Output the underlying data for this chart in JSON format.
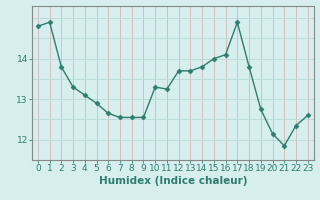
{
  "x": [
    0,
    1,
    2,
    3,
    4,
    5,
    6,
    7,
    8,
    9,
    10,
    11,
    12,
    13,
    14,
    15,
    16,
    17,
    18,
    19,
    20,
    21,
    22,
    23
  ],
  "y": [
    14.8,
    14.9,
    13.8,
    13.3,
    13.1,
    12.9,
    12.65,
    12.55,
    12.55,
    12.55,
    13.3,
    13.25,
    13.7,
    13.7,
    13.8,
    14.0,
    14.1,
    14.9,
    13.8,
    12.75,
    12.15,
    11.85,
    12.35,
    12.6
  ],
  "line_color": "#2e7d6e",
  "marker": "D",
  "marker_size": 2.5,
  "bg_color": "#d6eeee",
  "grid_color": "#b8d8d8",
  "grid_color_red": "#d4b8b8",
  "axis_color": "#888888",
  "xlabel": "Humidex (Indice chaleur)",
  "xlim": [
    -0.5,
    23.5
  ],
  "ylim": [
    11.5,
    15.3
  ],
  "yticks": [
    12,
    13,
    14
  ],
  "xticks": [
    0,
    1,
    2,
    3,
    4,
    5,
    6,
    7,
    8,
    9,
    10,
    11,
    12,
    13,
    14,
    15,
    16,
    17,
    18,
    19,
    20,
    21,
    22,
    23
  ],
  "xlabel_fontsize": 7.5,
  "tick_fontsize": 6.5,
  "line_width": 1.0
}
